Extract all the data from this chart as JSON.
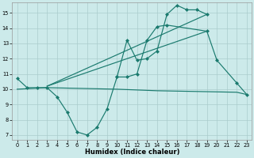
{
  "xlabel": "Humidex (Indice chaleur)",
  "background_color": "#cceaea",
  "grid_color": "#aacccc",
  "line_color": "#1a7a6e",
  "xlim": [
    -0.5,
    23.5
  ],
  "ylim": [
    6.7,
    15.7
  ],
  "xticks": [
    0,
    1,
    2,
    3,
    4,
    5,
    6,
    7,
    8,
    9,
    10,
    11,
    12,
    13,
    14,
    15,
    16,
    17,
    18,
    19,
    20,
    21,
    22,
    23
  ],
  "yticks": [
    7,
    8,
    9,
    10,
    11,
    12,
    13,
    14,
    15
  ],
  "wavy_x": [
    0,
    1,
    2,
    3,
    4,
    5,
    6,
    7,
    8,
    9,
    10,
    11,
    12,
    13,
    14,
    15,
    19,
    20,
    22,
    23
  ],
  "wavy_y": [
    10.7,
    10.1,
    10.1,
    10.1,
    9.5,
    8.5,
    7.2,
    7.0,
    7.5,
    8.7,
    10.8,
    10.8,
    11.0,
    13.2,
    14.1,
    14.2,
    13.8,
    11.9,
    10.4,
    9.65
  ],
  "upper_x": [
    10,
    11,
    12,
    13,
    14,
    15,
    16,
    17,
    18,
    19
  ],
  "upper_y": [
    10.8,
    13.2,
    11.9,
    12.0,
    12.5,
    14.9,
    15.5,
    15.2,
    15.2,
    14.9
  ],
  "trend1_x": [
    3,
    19
  ],
  "trend1_y": [
    10.2,
    13.8
  ],
  "trend2_x": [
    3,
    19
  ],
  "trend2_y": [
    10.2,
    14.9
  ],
  "flat_x": [
    0,
    3,
    10,
    14,
    18,
    22,
    23
  ],
  "flat_y": [
    10.0,
    10.1,
    10.0,
    9.9,
    9.85,
    9.8,
    9.65
  ]
}
